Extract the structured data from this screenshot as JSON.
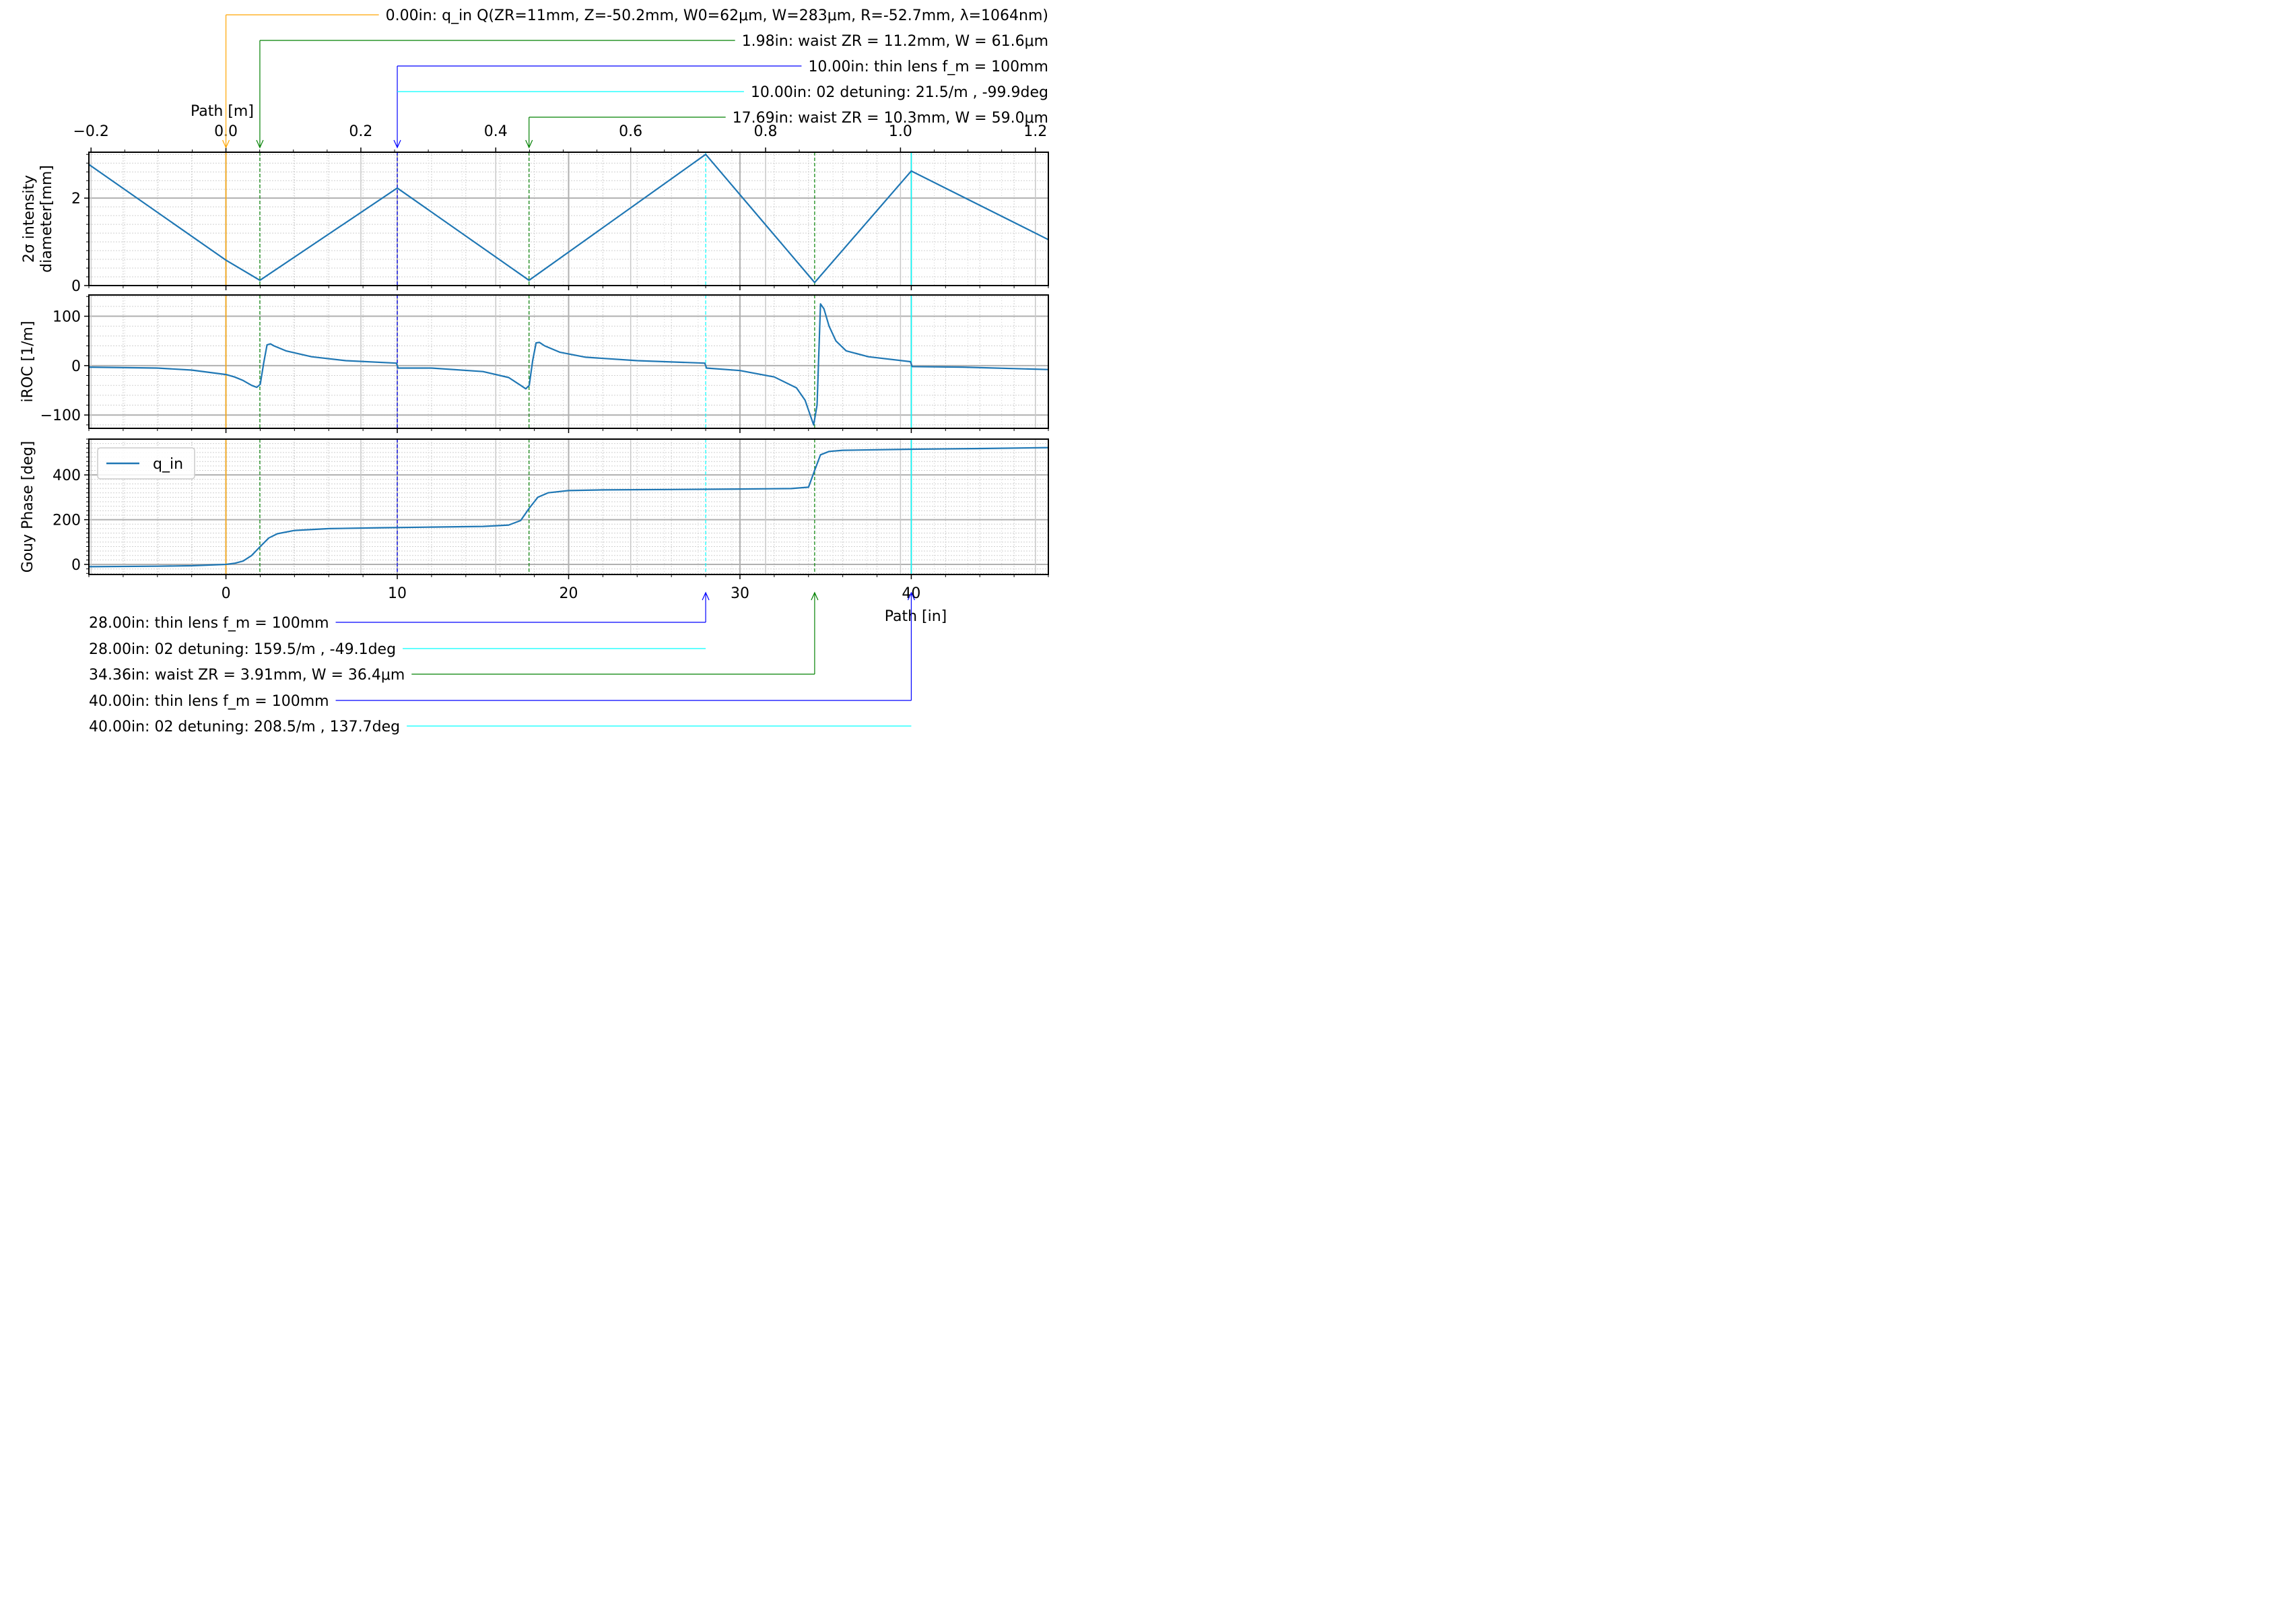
{
  "chart_data": [
    {
      "type": "line",
      "panel": "diameter",
      "ylabel_lines": [
        "2σ intensity",
        "diameter[mm]"
      ],
      "xlim": [
        -8,
        48
      ],
      "ylim": [
        0,
        3.05
      ],
      "yticks": [
        0,
        2
      ],
      "yticklabels": [
        "0",
        "2"
      ],
      "grid": true,
      "series": [
        {
          "name": "q_in",
          "x": [
            -8,
            0,
            1.98,
            10,
            17.69,
            28,
            34.36,
            40,
            48
          ],
          "y": [
            2.77,
            0.58,
            0.12,
            2.23,
            0.12,
            3.0,
            0.07,
            2.62,
            1.05
          ]
        }
      ]
    },
    {
      "type": "line",
      "panel": "iroc",
      "ylabel": "iROC [1/m]",
      "xlim": [
        -8,
        48
      ],
      "ylim": [
        -127,
        143
      ],
      "yticks": [
        -100,
        0,
        100
      ],
      "yticklabels": [
        "−100",
        "0",
        "100"
      ],
      "grid": true,
      "series": [
        {
          "name": "q_in",
          "x": [
            -8,
            -4,
            -2,
            0,
            0.5,
            1.0,
            1.5,
            1.8,
            2.0,
            2.2,
            2.4,
            2.6,
            2.8,
            3.5,
            5,
            7,
            9.95,
            10.05,
            12,
            15,
            16.5,
            17.2,
            17.5,
            17.7,
            17.9,
            18.1,
            18.3,
            18.6,
            19.5,
            21,
            24,
            27.95,
            28.05,
            30,
            32,
            33.3,
            33.8,
            34.1,
            34.3,
            34.5,
            34.7,
            34.9,
            35.2,
            35.6,
            36.2,
            37.5,
            39.95,
            40.05,
            43,
            48
          ],
          "y": [
            -3,
            -5,
            -9,
            -18,
            -23,
            -30,
            -40,
            -44,
            -38,
            5,
            42,
            44,
            40,
            30,
            18,
            10,
            5,
            -5,
            -5,
            -12,
            -24,
            -40,
            -47,
            -40,
            10,
            46,
            47,
            40,
            27,
            17,
            10,
            5,
            -5,
            -10,
            -23,
            -45,
            -70,
            -100,
            -120,
            -80,
            125,
            115,
            80,
            50,
            30,
            18,
            8,
            -2,
            -3,
            -8
          ]
        }
      ]
    },
    {
      "type": "line",
      "panel": "gouy",
      "ylabel": "Gouy Phase [deg]",
      "xlabel": "Path [in]",
      "xlim": [
        -8,
        48
      ],
      "ylim": [
        -45,
        560
      ],
      "yticks": [
        0,
        200,
        400
      ],
      "yticklabels": [
        "0",
        "200",
        "400"
      ],
      "xticks": [
        0,
        10,
        20,
        30,
        40
      ],
      "xticklabels": [
        "0",
        "10",
        "20",
        "30",
        "40"
      ],
      "grid": true,
      "legend": {
        "placement": "upper-left",
        "entries": [
          "q_in"
        ]
      },
      "series": [
        {
          "name": "q_in",
          "x": [
            -8,
            -4,
            -2,
            -1,
            0,
            0.5,
            1.0,
            1.5,
            2.0,
            2.5,
            3.0,
            4,
            6,
            9,
            12,
            15,
            16.5,
            17.2,
            17.69,
            18.2,
            18.8,
            20,
            22,
            26,
            30,
            33,
            34.0,
            34.36,
            34.7,
            35.2,
            36,
            40,
            44,
            48
          ],
          "y": [
            -10,
            -8,
            -6,
            -3,
            0,
            5,
            15,
            40,
            80,
            118,
            137,
            152,
            160,
            164,
            167,
            170,
            176,
            196,
            250,
            300,
            320,
            330,
            333,
            335,
            337,
            339,
            345,
            420,
            490,
            505,
            510,
            515,
            518,
            522
          ]
        }
      ]
    }
  ],
  "top_axis": {
    "label": "Path [m]",
    "ticks": [
      -0.2,
      0.0,
      0.2,
      0.4,
      0.6,
      0.8,
      1.0,
      1.2
    ],
    "ticklabels": [
      "−0.2",
      "0.0",
      "0.2",
      "0.4",
      "0.6",
      "0.8",
      "1.0",
      "1.2"
    ]
  },
  "markers": [
    {
      "x": 0,
      "color": "#ffa500",
      "style": "solid"
    },
    {
      "x": 1.98,
      "color": "#008000",
      "style": "dashed"
    },
    {
      "x": 10,
      "color": "#0000ff",
      "style": "dashed"
    },
    {
      "x": 17.69,
      "color": "#008000",
      "style": "dashed"
    },
    {
      "x": 28,
      "color": "#00ffff",
      "style": "dashed"
    },
    {
      "x": 34.36,
      "color": "#008000",
      "style": "dashed"
    },
    {
      "x": 40,
      "color": "#00ffff",
      "style": "solid"
    }
  ],
  "annotations_top": [
    {
      "text": "0.00in: q_in Q(ZR=11mm, Z=-50.2mm, W0=62μm, W=283μm, R=-52.7mm, λ=1064nm)",
      "x": 0,
      "color": "#ffa500",
      "arrow": true
    },
    {
      "text": "1.98in: waist ZR = 11.2mm, W = 61.6μm",
      "x": 1.98,
      "color": "#008000",
      "arrow": true
    },
    {
      "text": "10.00in: thin lens f_m = 100mm",
      "x": 10,
      "color": "#0000ff",
      "arrow": true
    },
    {
      "text": "10.00in: 02 detuning: 21.5/m , -99.9deg",
      "x": 10,
      "color": "#00ffff",
      "arrow": false
    },
    {
      "text": "17.69in: waist ZR = 10.3mm, W = 59.0μm",
      "x": 17.69,
      "color": "#008000",
      "arrow": true
    }
  ],
  "annotations_bottom": [
    {
      "text": "28.00in: thin lens f_m = 100mm",
      "x": 28,
      "color": "#0000ff",
      "arrow": true
    },
    {
      "text": "28.00in: 02 detuning: 159.5/m , -49.1deg",
      "x": 28,
      "color": "#00ffff",
      "arrow": false
    },
    {
      "text": "34.36in: waist ZR = 3.91mm, W = 36.4μm",
      "x": 34.36,
      "color": "#008000",
      "arrow": true
    },
    {
      "text": "40.00in: thin lens f_m = 100mm",
      "x": 40,
      "color": "#0000ff",
      "arrow": true
    },
    {
      "text": "40.00in: 02 detuning: 208.5/m , 137.7deg",
      "x": 40,
      "color": "#00ffff",
      "arrow": false
    }
  ],
  "colors": {
    "line": "#1f77b4",
    "major_grid": "#b0b0b0",
    "minor_grid": "#d0d0d0"
  }
}
